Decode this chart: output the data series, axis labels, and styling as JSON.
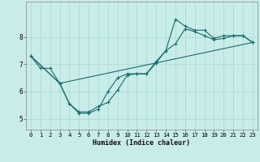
{
  "xlabel": "Humidex (Indice chaleur)",
  "bg_color": "#c8ece8",
  "grid_color": "#a8d8d0",
  "line_color": "#1a6b6b",
  "xlim": [
    -0.5,
    23.5
  ],
  "ylim": [
    4.6,
    9.3
  ],
  "xticks": [
    0,
    1,
    2,
    3,
    4,
    5,
    6,
    7,
    8,
    9,
    10,
    11,
    12,
    13,
    14,
    15,
    16,
    17,
    18,
    19,
    20,
    21,
    22,
    23
  ],
  "yticks": [
    5,
    6,
    7,
    8
  ],
  "line1_x": [
    0,
    1,
    2,
    3,
    4,
    5,
    6,
    7,
    8,
    9,
    10,
    11,
    12,
    13,
    14,
    15,
    16,
    17,
    18,
    19,
    20,
    21,
    22,
    23
  ],
  "line1_y": [
    7.3,
    6.85,
    6.85,
    6.3,
    5.55,
    5.25,
    5.25,
    5.45,
    5.6,
    6.05,
    6.6,
    6.65,
    6.65,
    7.05,
    7.5,
    7.75,
    8.3,
    8.2,
    8.05,
    7.9,
    7.95,
    8.05,
    8.05,
    7.8
  ],
  "line2_x": [
    0,
    3,
    4,
    5,
    6,
    7,
    8,
    9,
    10,
    11,
    12,
    13,
    14,
    15,
    16,
    17,
    18,
    19,
    20,
    21,
    22,
    23
  ],
  "line2_y": [
    7.3,
    6.3,
    5.55,
    5.2,
    5.2,
    5.35,
    6.0,
    6.5,
    6.65,
    6.65,
    6.65,
    7.1,
    7.5,
    8.65,
    8.4,
    8.25,
    8.25,
    7.95,
    8.05,
    8.05,
    8.05,
    7.8
  ],
  "line3_x": [
    0,
    3,
    23
  ],
  "line3_y": [
    7.3,
    6.3,
    7.8
  ]
}
